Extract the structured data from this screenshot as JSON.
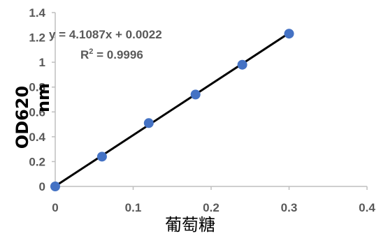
{
  "chart_data": {
    "type": "scatter",
    "title": "",
    "xlabel": "葡萄糖",
    "ylabel_line1": "OD620",
    "ylabel_line2": "nm",
    "xlim": [
      0,
      0.4
    ],
    "ylim": [
      0,
      1.4
    ],
    "x_ticks": [
      "0",
      "0.1",
      "0.2",
      "0.3",
      "0.4"
    ],
    "y_ticks": [
      "0",
      "0.2",
      "0.4",
      "0.6",
      "0.8",
      "1",
      "1.2",
      "1.4"
    ],
    "grid": false,
    "legend": "none",
    "series": [
      {
        "x": [
          0,
          0.06,
          0.12,
          0.18,
          0.24,
          0.3
        ],
        "y": [
          0,
          0.24,
          0.51,
          0.74,
          0.98,
          1.23
        ]
      }
    ],
    "trendline": {
      "slope": 4.1087,
      "intercept": 0.0022,
      "x_range": [
        0,
        0.3
      ]
    },
    "annotations": {
      "equation": "y = 4.1087x + 0.0022",
      "r2_prefix": "R",
      "r2_sup": "2",
      "r2_value": " = 0.9996"
    },
    "colors": {
      "marker": "#4472C4",
      "trendline": "#000000",
      "axis": "#bfbfbf",
      "tick_text": "#595959"
    }
  }
}
